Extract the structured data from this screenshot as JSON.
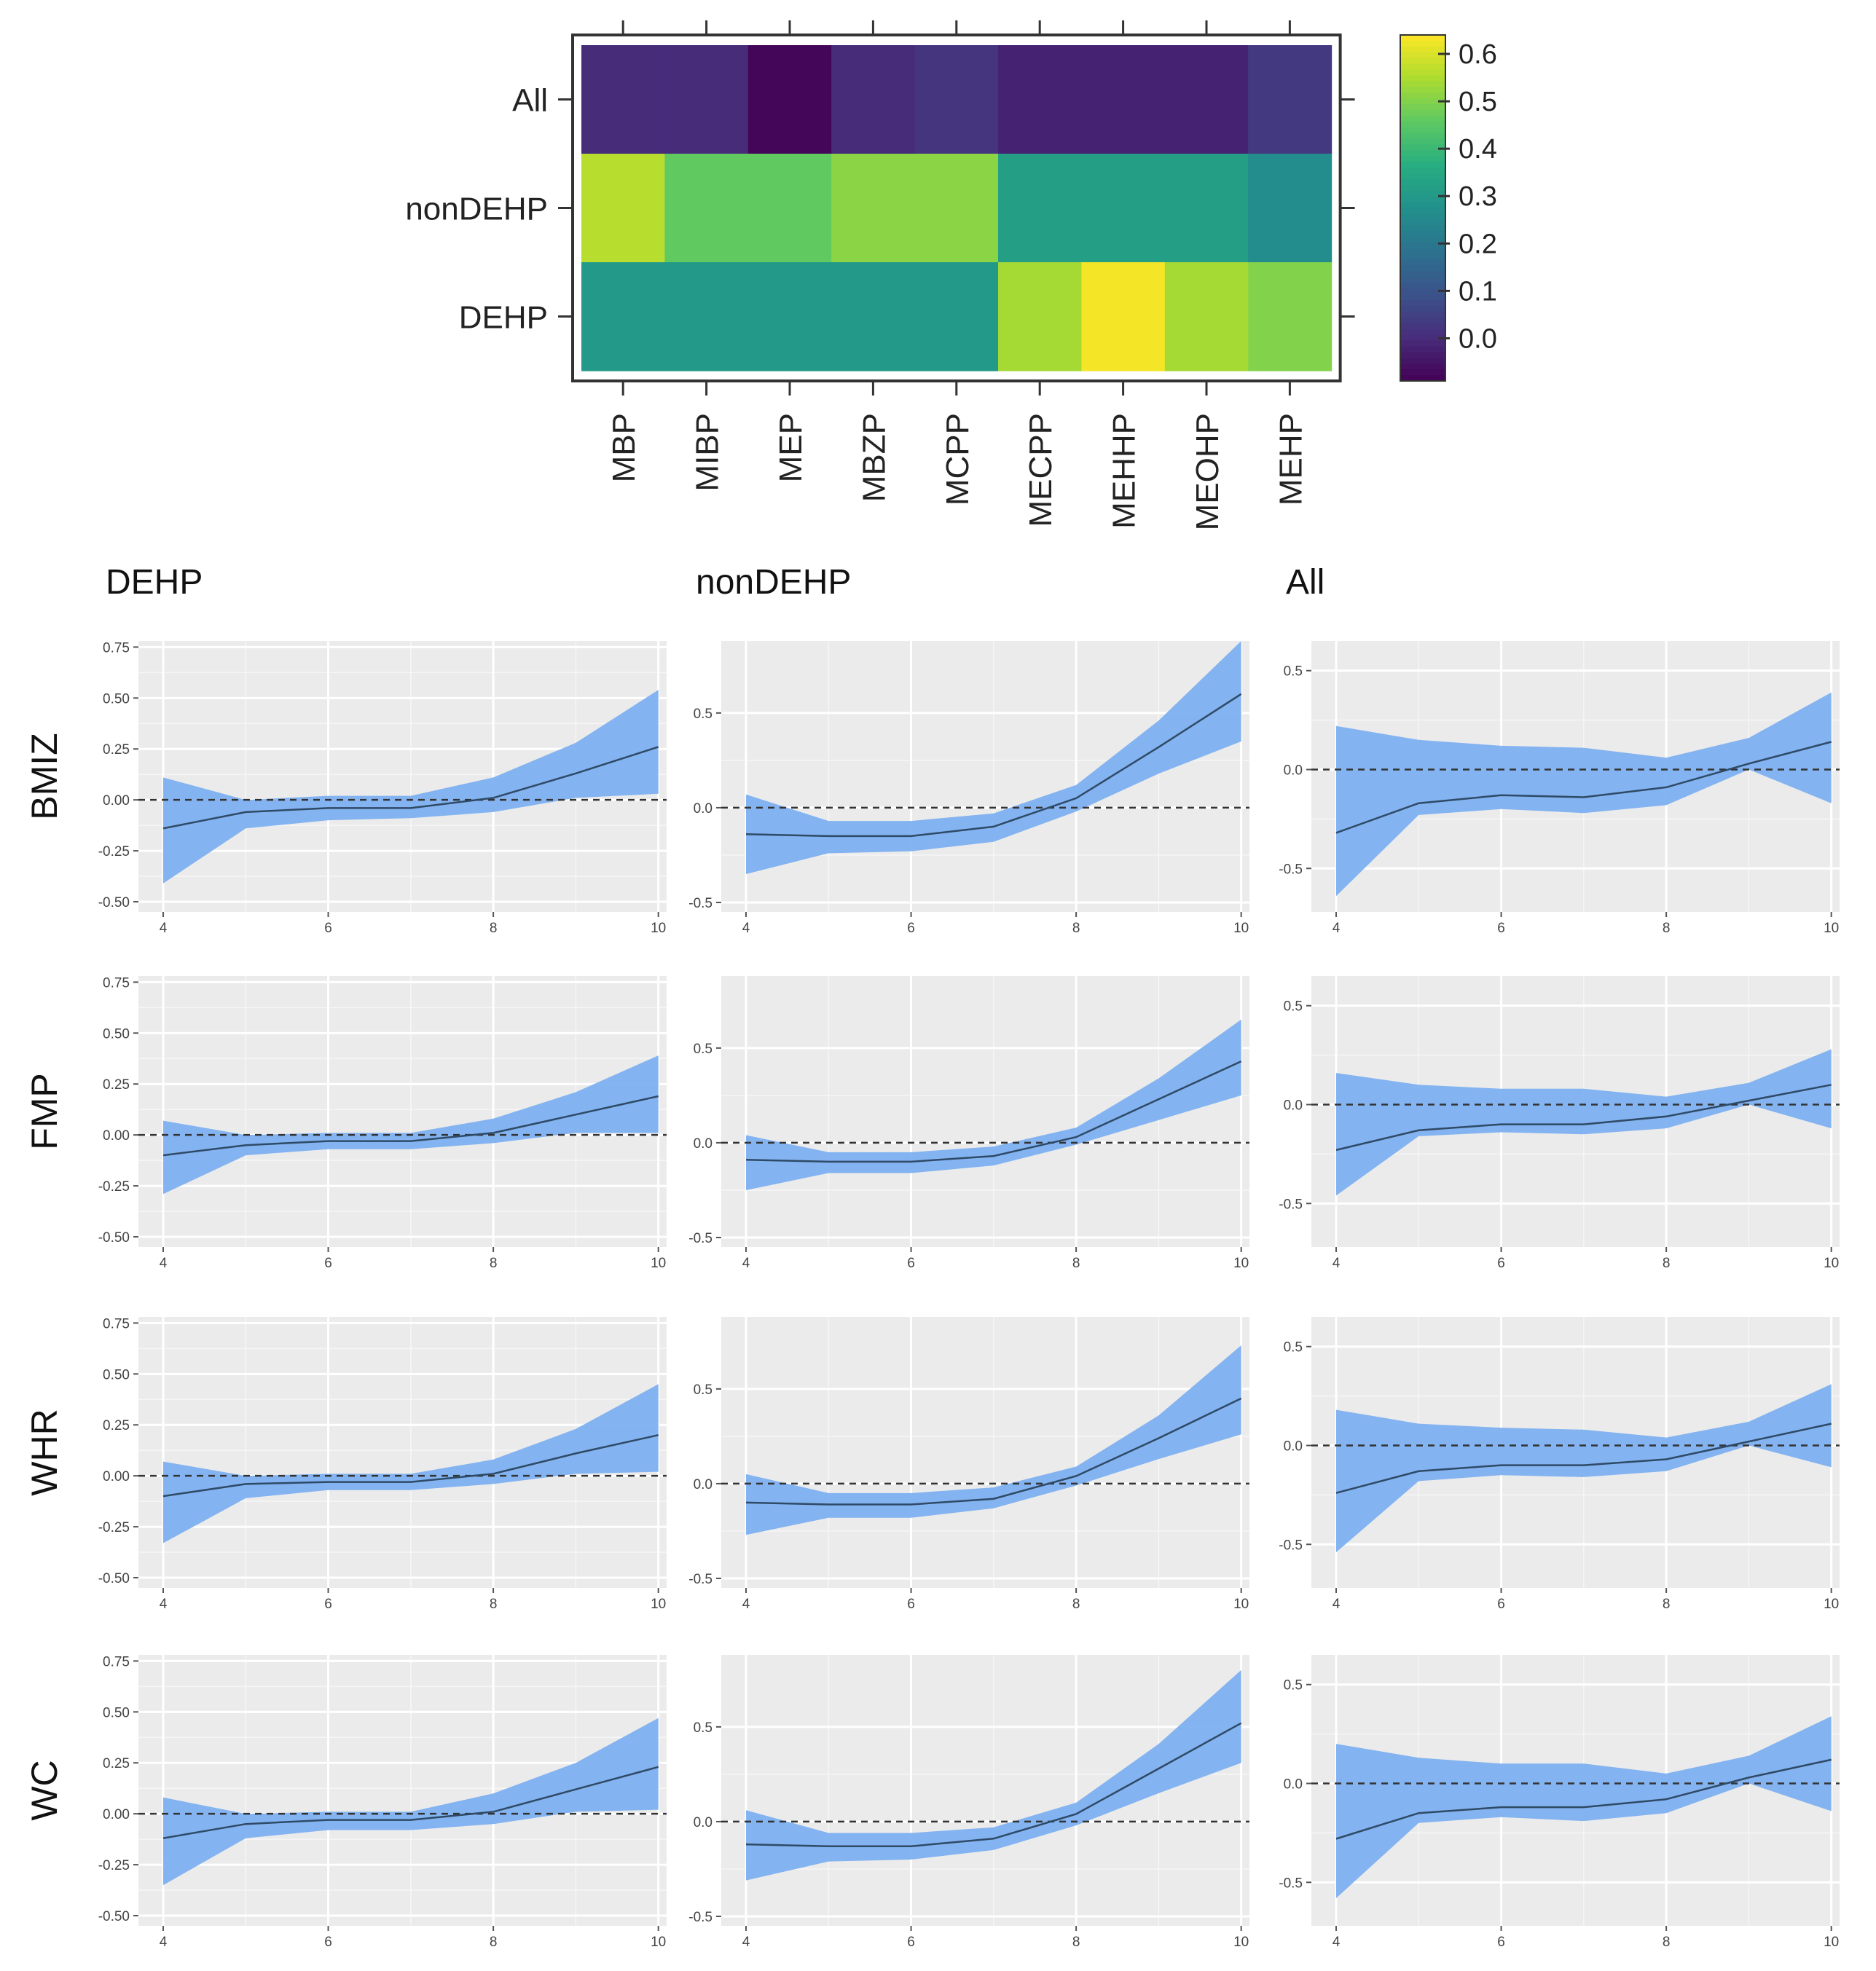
{
  "chart_data": [
    {
      "type": "heatmap",
      "rows": [
        "All",
        "nonDEHP",
        "DEHP"
      ],
      "columns": [
        "MBP",
        "MIBP",
        "MEP",
        "MBZP",
        "MCPP",
        "MECPP",
        "MEHHP",
        "MEOHP",
        "MEHP"
      ],
      "values": [
        [
          0.0,
          0.0,
          -0.08,
          0.0,
          0.02,
          -0.02,
          -0.02,
          -0.02,
          0.03
        ],
        [
          0.56,
          0.46,
          0.46,
          0.51,
          0.51,
          0.32,
          0.32,
          0.32,
          0.26
        ],
        [
          0.3,
          0.3,
          0.3,
          0.3,
          0.3,
          0.54,
          0.63,
          0.54,
          0.5
        ]
      ],
      "colorbar": {
        "ticks": [
          "0.6",
          "0.5",
          "0.4",
          "0.3",
          "0.2",
          "0.1",
          "0.0"
        ],
        "tick_values": [
          0.6,
          0.5,
          0.4,
          0.3,
          0.2,
          0.1,
          0.0
        ],
        "range": [
          -0.09,
          0.64
        ],
        "colors": [
          "#440154",
          "#472d7b",
          "#3b528b",
          "#2c728e",
          "#21918c",
          "#28ae80",
          "#5ec962",
          "#addc30",
          "#fde725"
        ]
      }
    },
    {
      "type": "line",
      "panel_layout": "4 rows x 3 columns",
      "column_titles": [
        "DEHP",
        "nonDEHP",
        "All"
      ],
      "row_titles": [
        "BMIZ",
        "FMP",
        "WHR",
        "WC"
      ],
      "x": [
        4,
        5,
        6,
        7,
        8,
        9,
        10
      ],
      "x_ticks": [
        "4",
        "6",
        "8",
        "10"
      ],
      "x_tick_values": [
        4,
        6,
        8,
        10
      ],
      "xlim": [
        3.7,
        10.1
      ],
      "reference_line": 0,
      "band_color": "#7aaef0",
      "line_color": "#2f4a66",
      "columns": [
        {
          "ylim": [
            -0.55,
            0.78
          ],
          "y_ticks": [
            "0.75",
            "0.50",
            "0.25",
            "0.00",
            "-0.25",
            "-0.50"
          ],
          "y_tick_values": [
            0.75,
            0.5,
            0.25,
            0.0,
            -0.25,
            -0.5
          ]
        },
        {
          "ylim": [
            -0.55,
            0.88
          ],
          "y_ticks": [
            "0.5",
            "0.0",
            "-0.5"
          ],
          "y_tick_values": [
            0.5,
            0.0,
            -0.5
          ]
        },
        {
          "ylim": [
            -0.72,
            0.65
          ],
          "y_ticks": [
            "0.5",
            "0.0",
            "-0.5"
          ],
          "y_tick_values": [
            0.5,
            0.0,
            -0.5
          ]
        }
      ],
      "panels": [
        [
          {
            "estimate": [
              -0.14,
              -0.06,
              -0.04,
              -0.04,
              0.01,
              0.13,
              0.26
            ],
            "lower": [
              -0.41,
              -0.14,
              -0.1,
              -0.09,
              -0.06,
              0.01,
              0.03
            ],
            "upper": [
              0.11,
              0.0,
              0.02,
              0.02,
              0.11,
              0.28,
              0.54
            ]
          },
          {
            "estimate": [
              -0.14,
              -0.15,
              -0.15,
              -0.1,
              0.05,
              0.32,
              0.6
            ],
            "lower": [
              -0.35,
              -0.24,
              -0.23,
              -0.18,
              -0.02,
              0.18,
              0.35
            ],
            "upper": [
              0.07,
              -0.07,
              -0.07,
              -0.03,
              0.12,
              0.46,
              0.88
            ]
          },
          {
            "estimate": [
              -0.32,
              -0.17,
              -0.13,
              -0.14,
              -0.09,
              0.03,
              0.14
            ],
            "lower": [
              -0.64,
              -0.23,
              -0.2,
              -0.22,
              -0.18,
              0.0,
              -0.17
            ],
            "upper": [
              0.22,
              0.15,
              0.12,
              0.11,
              0.06,
              0.16,
              0.39
            ]
          }
        ],
        [
          {
            "estimate": [
              -0.1,
              -0.05,
              -0.03,
              -0.03,
              0.01,
              0.1,
              0.19
            ],
            "lower": [
              -0.29,
              -0.1,
              -0.07,
              -0.07,
              -0.04,
              0.01,
              0.01
            ],
            "upper": [
              0.07,
              0.0,
              0.01,
              0.01,
              0.08,
              0.21,
              0.39
            ]
          },
          {
            "estimate": [
              -0.09,
              -0.1,
              -0.1,
              -0.07,
              0.03,
              0.23,
              0.43
            ],
            "lower": [
              -0.25,
              -0.16,
              -0.16,
              -0.12,
              -0.01,
              0.12,
              0.25
            ],
            "upper": [
              0.04,
              -0.05,
              -0.05,
              -0.02,
              0.08,
              0.34,
              0.65
            ]
          },
          {
            "estimate": [
              -0.23,
              -0.13,
              -0.1,
              -0.1,
              -0.06,
              0.02,
              0.1
            ],
            "lower": [
              -0.46,
              -0.16,
              -0.14,
              -0.15,
              -0.12,
              0.0,
              -0.12
            ],
            "upper": [
              0.16,
              0.1,
              0.08,
              0.08,
              0.04,
              0.11,
              0.28
            ]
          }
        ],
        [
          {
            "estimate": [
              -0.1,
              -0.04,
              -0.03,
              -0.03,
              0.01,
              0.11,
              0.2
            ],
            "lower": [
              -0.33,
              -0.11,
              -0.07,
              -0.07,
              -0.04,
              0.01,
              0.02
            ],
            "upper": [
              0.07,
              0.0,
              0.01,
              0.01,
              0.08,
              0.23,
              0.45
            ]
          },
          {
            "estimate": [
              -0.1,
              -0.11,
              -0.11,
              -0.08,
              0.04,
              0.24,
              0.45
            ],
            "lower": [
              -0.27,
              -0.18,
              -0.18,
              -0.13,
              -0.01,
              0.13,
              0.26
            ],
            "upper": [
              0.05,
              -0.05,
              -0.05,
              -0.02,
              0.09,
              0.36,
              0.73
            ]
          },
          {
            "estimate": [
              -0.24,
              -0.13,
              -0.1,
              -0.1,
              -0.07,
              0.02,
              0.11
            ],
            "lower": [
              -0.54,
              -0.18,
              -0.15,
              -0.16,
              -0.13,
              0.0,
              -0.11
            ],
            "upper": [
              0.18,
              0.11,
              0.09,
              0.08,
              0.04,
              0.12,
              0.31
            ]
          }
        ],
        [
          {
            "estimate": [
              -0.12,
              -0.05,
              -0.03,
              -0.03,
              0.01,
              0.12,
              0.23
            ],
            "lower": [
              -0.35,
              -0.12,
              -0.08,
              -0.08,
              -0.05,
              0.01,
              0.02
            ],
            "upper": [
              0.08,
              0.0,
              0.01,
              0.01,
              0.1,
              0.25,
              0.47
            ]
          },
          {
            "estimate": [
              -0.12,
              -0.13,
              -0.13,
              -0.09,
              0.04,
              0.28,
              0.52
            ],
            "lower": [
              -0.31,
              -0.21,
              -0.2,
              -0.15,
              -0.02,
              0.15,
              0.31
            ],
            "upper": [
              0.06,
              -0.06,
              -0.06,
              -0.03,
              0.1,
              0.41,
              0.8
            ]
          },
          {
            "estimate": [
              -0.28,
              -0.15,
              -0.12,
              -0.12,
              -0.08,
              0.03,
              0.12
            ],
            "lower": [
              -0.58,
              -0.2,
              -0.17,
              -0.19,
              -0.15,
              0.0,
              -0.14
            ],
            "upper": [
              0.2,
              0.13,
              0.1,
              0.1,
              0.05,
              0.14,
              0.34
            ]
          }
        ]
      ]
    }
  ]
}
